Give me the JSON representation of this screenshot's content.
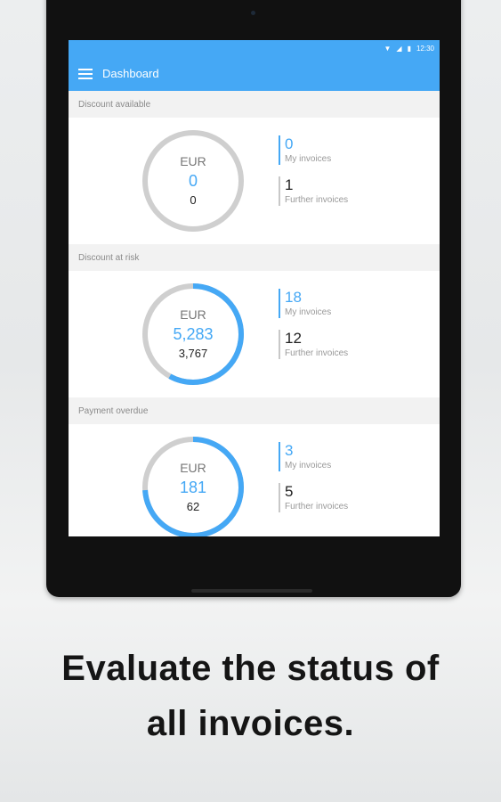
{
  "status_bar": {
    "time": "12:30"
  },
  "app_bar": {
    "title": "Dashboard"
  },
  "sections": [
    {
      "header": "Discount available",
      "currency": "EUR",
      "main_amount": "0",
      "sub_amount": "0",
      "progress": 0,
      "my_count": "0",
      "my_label": "My invoices",
      "further_count": "1",
      "further_label": "Further invoices"
    },
    {
      "header": "Discount at risk",
      "currency": "EUR",
      "main_amount": "5,283",
      "sub_amount": "3,767",
      "progress": 0.58,
      "my_count": "18",
      "my_label": "My invoices",
      "further_count": "12",
      "further_label": "Further invoices"
    },
    {
      "header": "Payment overdue",
      "currency": "EUR",
      "main_amount": "181",
      "sub_amount": "62",
      "progress": 0.74,
      "my_count": "3",
      "my_label": "My invoices",
      "further_count": "5",
      "further_label": "Further invoices"
    }
  ],
  "caption": {
    "line1": "Evaluate the status of",
    "line2": "all invoices."
  },
  "colors": {
    "accent": "#45a8f5",
    "ring_grey": "#cfcfcf"
  },
  "icons": [
    "wifi-icon",
    "signal-icon",
    "battery-icon",
    "menu-icon"
  ]
}
